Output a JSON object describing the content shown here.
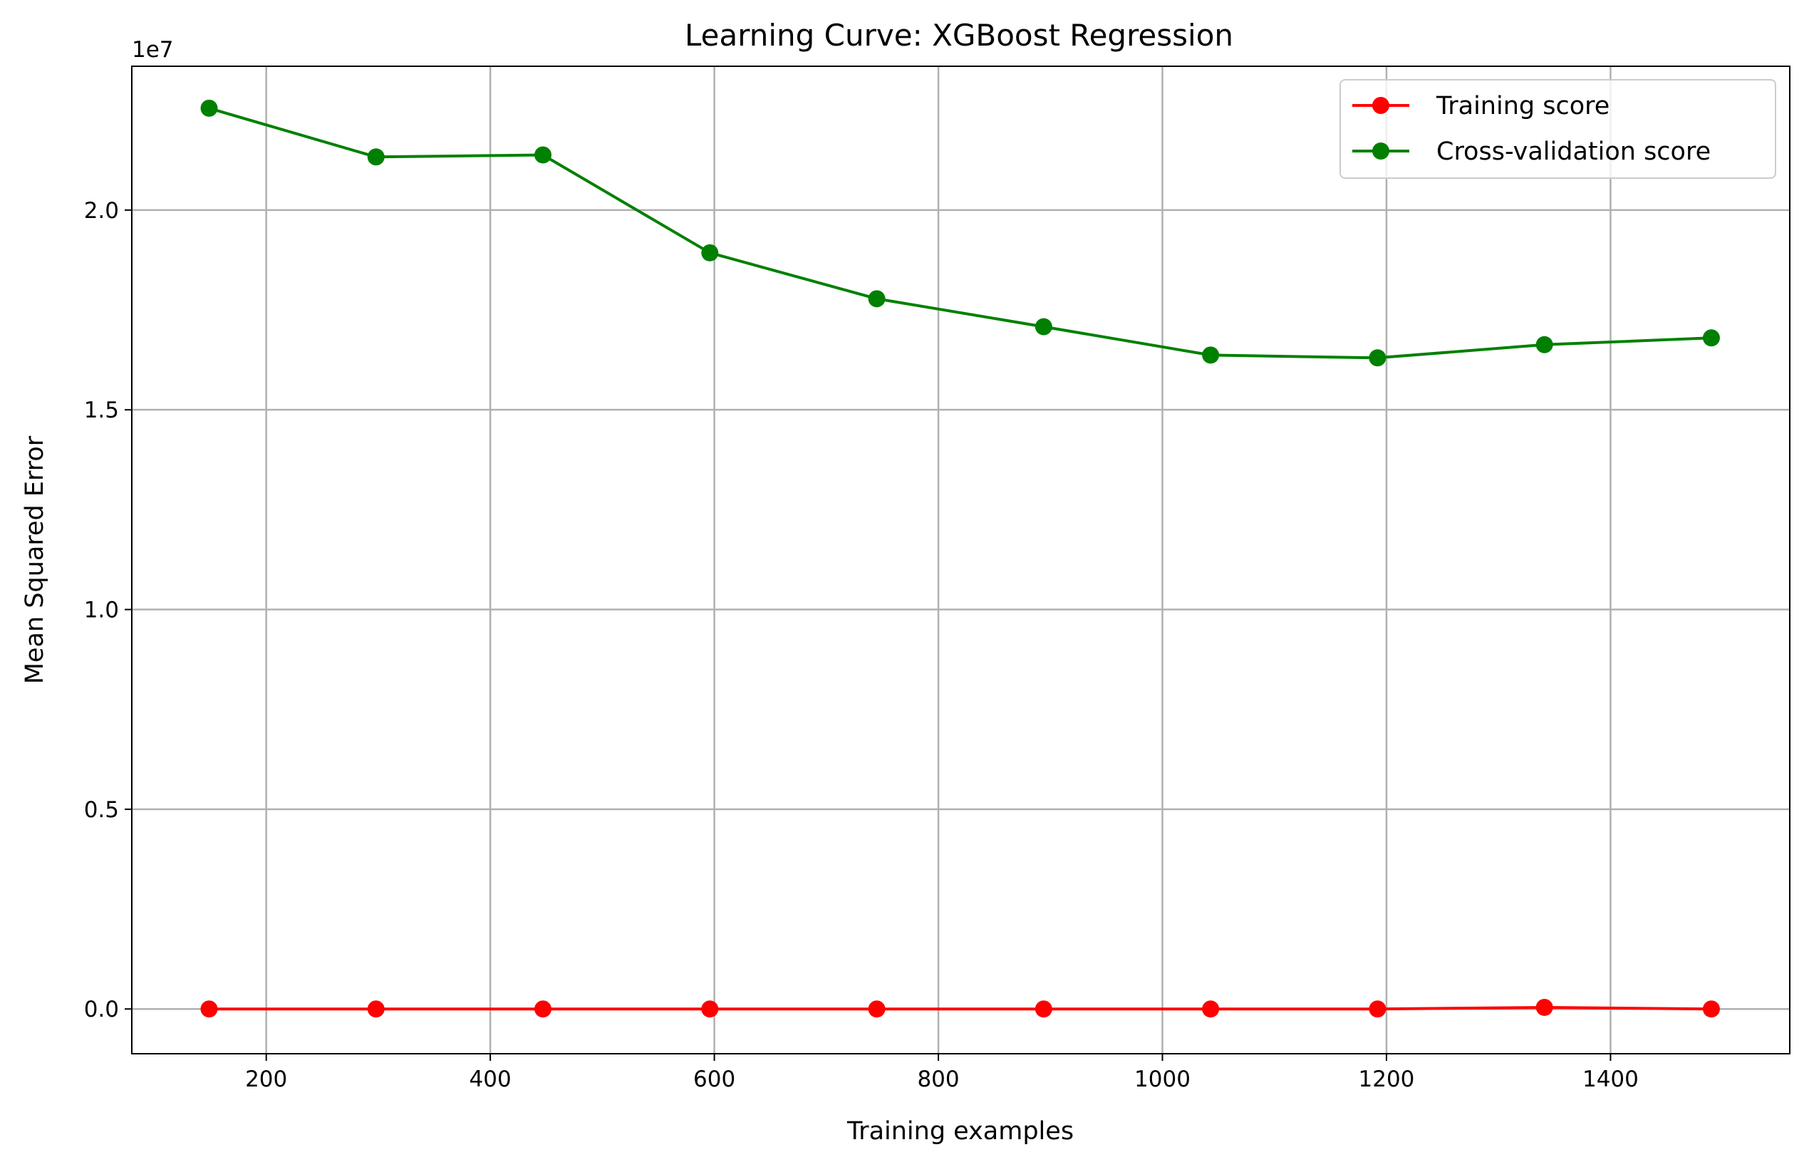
{
  "chart_data": {
    "type": "line",
    "title": "Learning Curve: XGBoost Regression",
    "xlabel": "Training examples",
    "ylabel": "Mean Squared Error",
    "y_scale_label": "1e7",
    "y_scale_factor": 10000000,
    "xlim": [
      80,
      1560
    ],
    "ylim": [
      -1120000,
      23600000
    ],
    "grid": true,
    "legend_position": "upper right",
    "x_ticks": [
      {
        "value": 200,
        "label": "200"
      },
      {
        "value": 400,
        "label": "400"
      },
      {
        "value": 600,
        "label": "600"
      },
      {
        "value": 800,
        "label": "800"
      },
      {
        "value": 1000,
        "label": "1000"
      },
      {
        "value": 1200,
        "label": "1200"
      },
      {
        "value": 1400,
        "label": "1400"
      }
    ],
    "y_ticks": [
      {
        "value": 0,
        "label": "0.0"
      },
      {
        "value": 5000000,
        "label": "0.5"
      },
      {
        "value": 10000000,
        "label": "1.0"
      },
      {
        "value": 15000000,
        "label": "1.5"
      },
      {
        "value": 20000000,
        "label": "2.0"
      }
    ],
    "x": [
      149,
      298,
      447,
      596,
      745,
      894,
      1043,
      1192,
      1341,
      1490
    ],
    "series": [
      {
        "name": "Training score",
        "color": "#ff0000",
        "marker": "circle",
        "values": [
          0,
          0,
          0,
          0,
          0,
          0,
          0,
          0,
          40000,
          0
        ]
      },
      {
        "name": "Cross-validation score",
        "color": "#008000",
        "marker": "circle",
        "values": [
          22550000,
          21330000,
          21380000,
          18930000,
          17780000,
          17080000,
          16370000,
          16300000,
          16630000,
          16800000
        ]
      }
    ]
  }
}
